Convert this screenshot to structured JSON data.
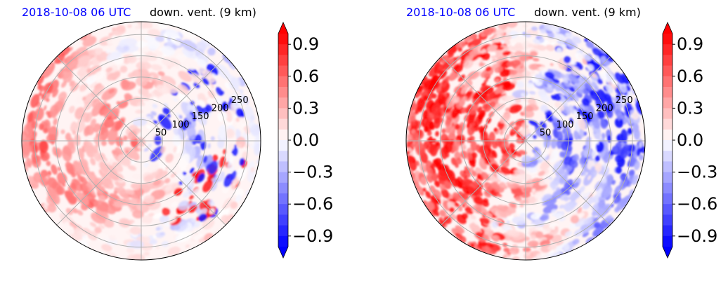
{
  "chart_data": [
    {
      "type": "heatmap",
      "projection": "polar",
      "title_left": "2018-10-08 06 UTC",
      "title_right": "down. vent. (9 km)",
      "radial_ticks": [
        "50",
        "100",
        "150",
        "200",
        "250"
      ],
      "radial_values": [
        50,
        100,
        150,
        200,
        250
      ],
      "radial_max": 280,
      "angular_spokes_deg": [
        0,
        45,
        90,
        135,
        180,
        225,
        270,
        315
      ],
      "grid": true,
      "colorbar": {
        "vmin": -1.0,
        "vmax": 1.0,
        "extend": "both",
        "ticks": [
          "0.9",
          "0.6",
          "0.3",
          "0.0",
          "−0.3",
          "−0.6",
          "−0.9"
        ],
        "tick_values": [
          0.9,
          0.6,
          0.3,
          0.0,
          -0.3,
          -0.6,
          -0.9
        ],
        "cmap": "bwr"
      },
      "field_pattern": "positive spiral bands west/south, negative patches east"
    },
    {
      "type": "heatmap",
      "projection": "polar",
      "title_left": "2018-10-08 06 UTC",
      "title_right": "down. vent. (9 km)",
      "radial_ticks": [
        "50",
        "100",
        "150",
        "200",
        "250"
      ],
      "radial_values": [
        50,
        100,
        150,
        200,
        250
      ],
      "radial_max": 280,
      "angular_spokes_deg": [
        0,
        45,
        90,
        135,
        180,
        225,
        270,
        315
      ],
      "grid": true,
      "colorbar": {
        "vmin": -1.0,
        "vmax": 1.0,
        "extend": "both",
        "ticks": [
          "0.9",
          "0.6",
          "0.3",
          "0.0",
          "−0.3",
          "−0.6",
          "−0.9"
        ],
        "tick_values": [
          0.9,
          0.6,
          0.3,
          0.0,
          -0.3,
          -0.6,
          -0.9
        ],
        "cmap": "bwr"
      },
      "field_pattern": "strong positive west/southwest, strong negative northeast/east"
    }
  ],
  "colors": {
    "title_date": "#0000ff",
    "grid": "#b0b0b0",
    "positive": "#ff0000",
    "negative": "#0000ff"
  }
}
